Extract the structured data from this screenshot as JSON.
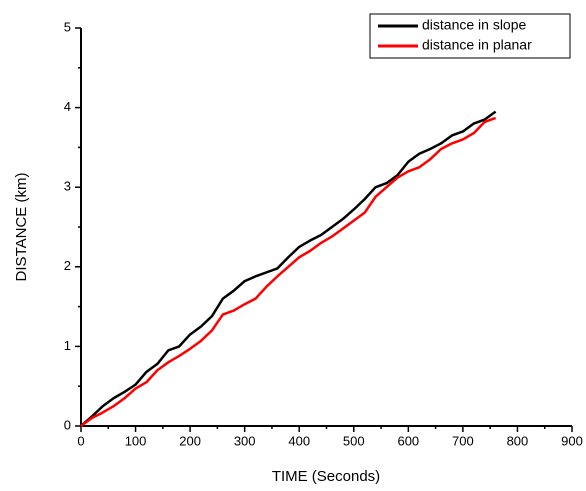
{
  "chart_data": {
    "type": "line",
    "xlabel": "TIME (Seconds)",
    "ylabel": "DISTANCE (km)",
    "x": [
      0,
      20,
      40,
      60,
      80,
      100,
      120,
      140,
      160,
      180,
      200,
      220,
      240,
      260,
      280,
      300,
      320,
      340,
      360,
      380,
      400,
      420,
      440,
      460,
      480,
      500,
      520,
      540,
      560,
      580,
      600,
      620,
      640,
      660,
      680,
      700,
      720,
      740,
      760
    ],
    "series": [
      {
        "name": "distance in slope",
        "color": "#000000",
        "values": [
          0,
          0.12,
          0.25,
          0.35,
          0.43,
          0.52,
          0.68,
          0.78,
          0.95,
          1.0,
          1.15,
          1.25,
          1.38,
          1.6,
          1.7,
          1.82,
          1.88,
          1.93,
          1.98,
          2.12,
          2.25,
          2.33,
          2.4,
          2.5,
          2.6,
          2.72,
          2.85,
          3.0,
          3.05,
          3.15,
          3.32,
          3.42,
          3.48,
          3.55,
          3.65,
          3.7,
          3.8,
          3.85,
          3.95
        ]
      },
      {
        "name": "distance in planar",
        "color": "#ff0000",
        "values": [
          0,
          0.1,
          0.17,
          0.25,
          0.35,
          0.47,
          0.55,
          0.7,
          0.8,
          0.88,
          0.97,
          1.07,
          1.2,
          1.4,
          1.45,
          1.53,
          1.6,
          1.75,
          1.88,
          2.0,
          2.12,
          2.2,
          2.3,
          2.38,
          2.48,
          2.58,
          2.68,
          2.88,
          3.0,
          3.12,
          3.2,
          3.25,
          3.35,
          3.48,
          3.55,
          3.6,
          3.68,
          3.82,
          3.87
        ]
      }
    ],
    "xlim": [
      0,
      900
    ],
    "xticks": [
      0,
      100,
      200,
      300,
      400,
      500,
      600,
      700,
      800,
      900
    ],
    "xminorticks": [
      50,
      150,
      250,
      350,
      450,
      550,
      650,
      750,
      850
    ],
    "ylim": [
      0,
      5
    ],
    "yticks": [
      0,
      1,
      2,
      3,
      4,
      5
    ],
    "yminorticks": [
      0.5,
      1.5,
      2.5,
      3.5,
      4.5
    ],
    "grid": false,
    "legend": "upper right"
  }
}
